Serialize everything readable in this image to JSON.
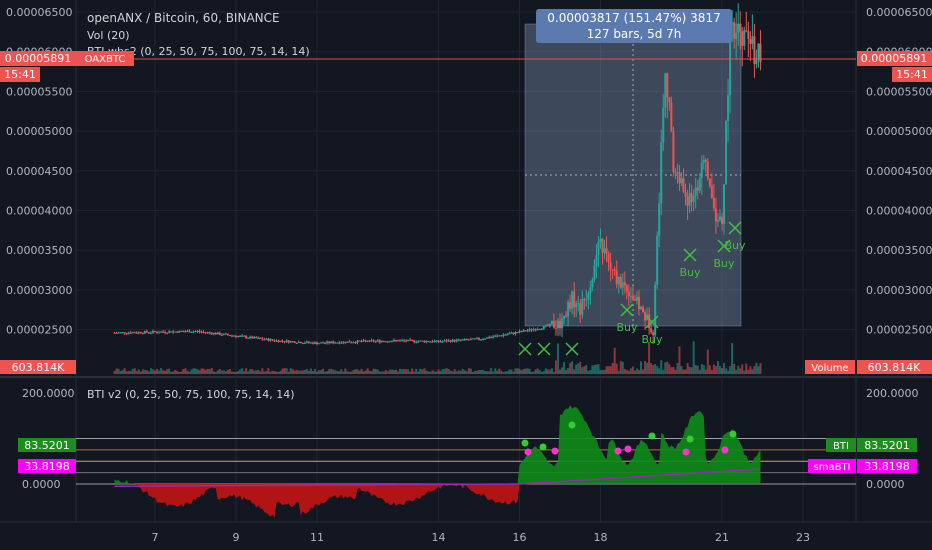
{
  "header": {
    "symbol_line": "openANX / Bitcoin, 60, BINANCE",
    "vol_label": "Vol (20)",
    "bti_main_label": "BTI wbs2 (0, 25, 50, 75, 100, 75, 14, 14)",
    "bti_pane_label": "BTI v2 (0, 25, 50, 75, 100, 75, 14, 14)"
  },
  "price_axis": {
    "ticks": [
      "0.00006500",
      "0.00006000",
      "0.00005500",
      "0.00005000",
      "0.00004500",
      "0.00004000",
      "0.00003500",
      "0.00003000",
      "0.00002500"
    ],
    "last_price": "0.00005891",
    "countdown": "15:41",
    "symbol_tag": "OAXBTC"
  },
  "volume": {
    "value": "603.814K",
    "label": "Volume"
  },
  "time_axis": {
    "ticks": [
      "7",
      "9",
      "11",
      "14",
      "16",
      "18",
      "21",
      "23"
    ]
  },
  "measure_tool": {
    "line1": "0.00003817 (151.47%) 3817",
    "line2": "127 bars, 5d 7h"
  },
  "signals": {
    "buy_label": "Buy"
  },
  "bti_pane": {
    "axis_ticks": [
      "200.0000",
      "0.0000"
    ],
    "bti_value": "83.5201",
    "bti_label": "BTI",
    "sma_value": "33.8198",
    "sma_label": "smaBTI"
  },
  "colors": {
    "background": "#131722",
    "up": "#26a69a",
    "down": "#ef5350",
    "bti_positive": "#0f8b1a",
    "bti_negative": "#c21414",
    "sma_line": "#9c27b0",
    "magenta_tag": "#ff00ff",
    "green_tag": "#1e8c1e",
    "measure_box": "#5a7aa6",
    "orange_level": "#e08a1e"
  },
  "chart_data": {
    "type": "candlestick",
    "symbol": "openANX / Bitcoin",
    "interval": "60",
    "exchange": "BINANCE",
    "price_range": [
      2.15e-05,
      6.6e-05
    ],
    "x": [
      "7",
      "9",
      "11",
      "14",
      "16",
      "18",
      "21",
      "23"
    ],
    "price_path": [
      [
        "6",
        2.46e-05
      ],
      [
        "7",
        2.47e-05
      ],
      [
        "8",
        2.48e-05
      ],
      [
        "9",
        2.42e-05
      ],
      [
        "10",
        2.36e-05
      ],
      [
        "11",
        2.33e-05
      ],
      [
        "12",
        2.35e-05
      ],
      [
        "13",
        2.36e-05
      ],
      [
        "14",
        2.35e-05
      ],
      [
        "15",
        2.38e-05
      ],
      [
        "16",
        2.47e-05
      ],
      [
        "16.5",
        2.52e-05
      ],
      [
        "17",
        2.58e-05
      ],
      [
        "17.3",
        2.9e-05
      ],
      [
        "17.5",
        2.75e-05
      ],
      [
        "17.7",
        3e-05
      ],
      [
        "18",
        3.6e-05
      ],
      [
        "18.3",
        3.2e-05
      ],
      [
        "18.7",
        3e-05
      ],
      [
        "19",
        2.75e-05
      ],
      [
        "19.3",
        2.5e-05
      ],
      [
        "19.6",
        5.9e-05
      ],
      [
        "19.8",
        4.55e-05
      ],
      [
        "20.2",
        4.1e-05
      ],
      [
        "20.6",
        4.6e-05
      ],
      [
        "20.8",
        4e-05
      ],
      [
        "21",
        3.8e-05
      ],
      [
        "21.2",
        6.2e-05
      ],
      [
        "21.5",
        6.2e-05
      ],
      [
        "22",
        5.891e-05
      ]
    ],
    "last_price": 5.891e-05,
    "volume_last": "603.814K",
    "measure": {
      "change": 3.817e-05,
      "percent": 151.47,
      "ticks": 3817,
      "bars": 127,
      "span": "5d 7h"
    },
    "buy_signals": 8,
    "bti": {
      "last": 83.5201,
      "sma_last": 33.8198,
      "axis_ticks": [
        200,
        0
      ],
      "levels": [
        100,
        75,
        50,
        25,
        0
      ]
    }
  }
}
